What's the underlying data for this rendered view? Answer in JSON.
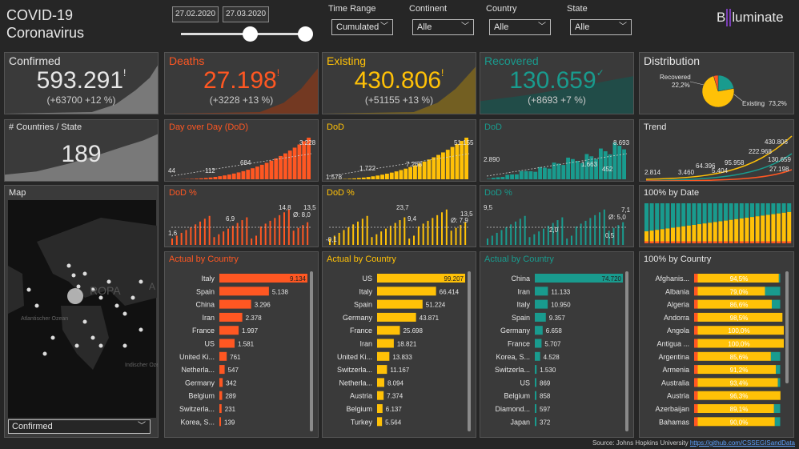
{
  "header": {
    "title_line1": "COVID-19",
    "title_line2": "Coronavirus",
    "date_from": "27.02.2020",
    "date_to": "27.03.2020",
    "filters": [
      {
        "label": "Time Range",
        "value": "Cumulated"
      },
      {
        "label": "Continent",
        "value": "Alle"
      },
      {
        "label": "Country",
        "value": "Alle"
      },
      {
        "label": "State",
        "value": "Alle"
      }
    ],
    "logo_b": "B",
    "logo_text": "luminate"
  },
  "colors": {
    "confirmed": "#ffffff",
    "deaths": "#ff5722",
    "existing": "#ffc107",
    "recovered": "#199b8e",
    "dash": "#cccccc"
  },
  "kpis": [
    {
      "title": "Confirmed",
      "value": "593.291",
      "sub": "(+63700 +12 %)",
      "mark": "!"
    },
    {
      "title": "Deaths",
      "value": "27.198",
      "sub": "(+3228 +13 %)",
      "mark": "!"
    },
    {
      "title": "Existing",
      "value": "430.806",
      "sub": "(+51155 +13 %)",
      "mark": "!"
    },
    {
      "title": "Recovered",
      "value": "130.659",
      "sub": "(+8693 +7 %)",
      "mark": "✓"
    }
  ],
  "distribution": {
    "title": "Distribution",
    "slices": [
      {
        "label": "Recovered",
        "value": 22.2,
        "pct_text": "22,2%"
      },
      {
        "label": "Existing",
        "value": 73.2,
        "pct_text": "73,2%"
      },
      {
        "label": "Deaths",
        "value": 4.6
      }
    ]
  },
  "countries": {
    "title": "# Countries / State",
    "value": "189"
  },
  "dod": {
    "deaths_title": "Day over Day (DoD)",
    "existing_title": "DoD",
    "recovered_title": "DoD",
    "deaths_labels": [
      "44",
      "112",
      "684",
      "3.228"
    ],
    "existing_labels": [
      "1.578",
      "1.722",
      "7.268",
      "51.155"
    ],
    "recovered_labels": [
      "2.890",
      "1.663",
      "452",
      "8.693"
    ]
  },
  "dodpct": {
    "title": "DoD %",
    "deaths_labels": [
      "1,6",
      "6,9",
      "14,8",
      "Ø: 8,0",
      "13,5"
    ],
    "existing_labels": [
      "-0,1",
      "23,7",
      "9,4",
      "Ø: 7,9",
      "13,5"
    ],
    "recovered_labels": [
      "9,5",
      "2,0",
      "Ø: 5,0",
      "7,1",
      "0,5"
    ]
  },
  "trend": {
    "title": "Trend",
    "labels": [
      "2.814",
      "3.460",
      "5.404",
      "64.396",
      "95.958",
      "222.968",
      "430.806",
      "130.659",
      "27.198"
    ]
  },
  "pctbydate": {
    "title": "100% by Date"
  },
  "map": {
    "title": "Map",
    "select_value": "Confirmed",
    "labels": [
      "ROPA",
      "Atlantischer Ozean",
      "Indischer Ozean",
      "A"
    ]
  },
  "actual": {
    "title": "Actual by Country",
    "deaths": {
      "countries": [
        "Italy",
        "Spain",
        "China",
        "Iran",
        "France",
        "US",
        "United Ki...",
        "Netherla...",
        "Germany",
        "Belgium",
        "Switzerla...",
        "Korea, S..."
      ],
      "values": [
        9134,
        5138,
        3296,
        2378,
        1997,
        1581,
        761,
        547,
        342,
        289,
        231,
        139
      ],
      "labels": [
        "9.134",
        "5.138",
        "3.296",
        "2.378",
        "1.997",
        "1.581",
        "761",
        "547",
        "342",
        "289",
        "231",
        "139"
      ]
    },
    "existing": {
      "countries": [
        "US",
        "Italy",
        "Spain",
        "Germany",
        "France",
        "Iran",
        "United Ki...",
        "Switzerla...",
        "Netherla...",
        "Austria",
        "Belgium",
        "Turkey"
      ],
      "values": [
        99207,
        66414,
        51224,
        43871,
        25698,
        18821,
        13833,
        11167,
        8094,
        7374,
        6137,
        5564
      ],
      "labels": [
        "99.207",
        "66.414",
        "51.224",
        "43.871",
        "25.698",
        "18.821",
        "13.833",
        "11.167",
        "8.094",
        "7.374",
        "6.137",
        "5.564"
      ]
    },
    "recovered": {
      "countries": [
        "China",
        "Iran",
        "Italy",
        "Spain",
        "Germany",
        "France",
        "Korea, S...",
        "Switzerla...",
        "US",
        "Belgium",
        "Diamond...",
        "Japan"
      ],
      "values": [
        74720,
        11133,
        10950,
        9357,
        6658,
        5707,
        4528,
        1530,
        869,
        858,
        597,
        372
      ],
      "labels": [
        "74.720",
        "11.133",
        "10.950",
        "9.357",
        "6.658",
        "5.707",
        "4.528",
        "1.530",
        "869",
        "858",
        "597",
        "372"
      ]
    }
  },
  "pctcountry": {
    "title": "100% by Country",
    "countries": [
      "Afghanis...",
      "Albania",
      "Algeria",
      "Andorra",
      "Angola",
      "Antigua ...",
      "Argentina",
      "Armenia",
      "Australia",
      "Austria",
      "Azerbaijan",
      "Bahamas"
    ],
    "existing": [
      94.5,
      79.0,
      86.6,
      98.5,
      100.0,
      100.0,
      85.6,
      91.2,
      93.4,
      96.3,
      89.1,
      90.0
    ],
    "labels": [
      "94,5%",
      "79,0%",
      "86,6%",
      "98,5%",
      "100,0%",
      "100,0%",
      "85,6%",
      "91,2%",
      "93,4%",
      "96,3%",
      "89,1%",
      "90,0%"
    ]
  },
  "source": {
    "text": "Source: Johns Hopkins University",
    "link": "https://github.com/CSSEGISandData"
  }
}
